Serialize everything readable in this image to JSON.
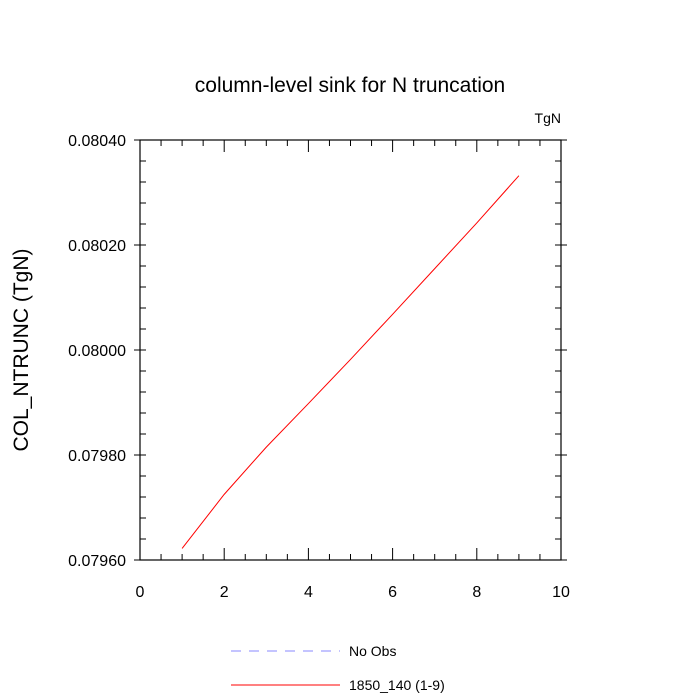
{
  "chart_data": {
    "type": "line",
    "title": "column-level sink for N truncation",
    "units_label": "TgN",
    "ylabel": "COL_NTRUNC  (TgN)",
    "xlabel": "",
    "xlim": [
      0,
      10
    ],
    "ylim": [
      0.0796,
      0.0804
    ],
    "x_ticks": [
      0,
      2,
      4,
      6,
      8,
      10
    ],
    "x_tick_labels": [
      "0",
      "2",
      "4",
      "6",
      "8",
      "10"
    ],
    "y_ticks": [
      0.0796,
      0.0798,
      0.08,
      0.0802,
      0.0804
    ],
    "y_tick_labels": [
      "0.07960",
      "0.07980",
      "0.08000",
      "0.08020",
      "0.08040"
    ],
    "grid": false,
    "legend_position": "bottom",
    "series": [
      {
        "name": "1850_140 (1-9)",
        "color": "#ff0000",
        "dash": "solid",
        "x": [
          1,
          2,
          3,
          4,
          5,
          6,
          7,
          8,
          9
        ],
        "values": [
          0.079622,
          0.079725,
          0.079815,
          0.079898,
          0.079982,
          0.080068,
          0.080155,
          0.080242,
          0.080332
        ]
      }
    ],
    "legend": [
      {
        "label": "No Obs",
        "color": "#8888ff",
        "dash": "dashed"
      },
      {
        "label": "1850_140 (1-9)",
        "color": "#ff0000",
        "dash": "solid"
      }
    ]
  }
}
